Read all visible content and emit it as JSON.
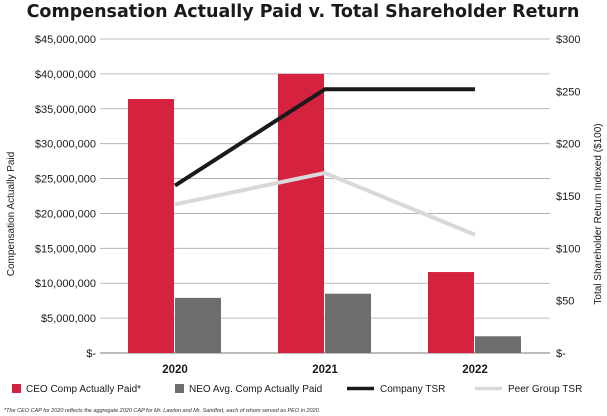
{
  "chart_data": {
    "type": "bar+line",
    "title": "Compensation Actually Paid v. Total Shareholder Return",
    "categories": [
      "2020",
      "2021",
      "2022"
    ],
    "left_axis": {
      "label": "Compensation Actually Paid",
      "range": [
        0,
        45000000
      ],
      "ticks": [
        0,
        5000000,
        10000000,
        15000000,
        20000000,
        25000000,
        30000000,
        35000000,
        40000000,
        45000000
      ],
      "tick_labels": [
        "$-",
        "$5,000,000",
        "$10,000,000",
        "$15,000,000",
        "$20,000,000",
        "$25,000,000",
        "$30,000,000",
        "$35,000,000",
        "$40,000,000",
        "$45,000,000"
      ]
    },
    "right_axis": {
      "label": "Total Shareholder Return Indexed ($100)",
      "range": [
        0,
        300
      ],
      "ticks": [
        0,
        50,
        100,
        150,
        200,
        250,
        300
      ],
      "tick_labels": [
        "$-",
        "$50",
        "$100",
        "$150",
        "$200",
        "$250",
        "$300"
      ]
    },
    "grid": true,
    "legend_position": "bottom",
    "bar_series": [
      {
        "name": "CEO Comp Actually Paid*",
        "color": "#d4223f",
        "values": [
          36400000,
          40000000,
          11600000
        ]
      },
      {
        "name": "NEO Avg. Comp Actually Paid",
        "color": "#6d6d6d",
        "values": [
          7900000,
          8500000,
          2400000
        ]
      }
    ],
    "line_series": [
      {
        "name": "Company TSR",
        "color": "#1a1a1a",
        "values": [
          160,
          252,
          252
        ]
      },
      {
        "name": "Peer Group TSR",
        "color": "#d9d9d9",
        "values": [
          142,
          172,
          113
        ]
      }
    ],
    "footnote": "*The CEO CAP for 2020 reflects the aggregate 2020 CAP for Mr. Lawton and Mr. Sandfort, each of whom served as PEO in 2020."
  }
}
